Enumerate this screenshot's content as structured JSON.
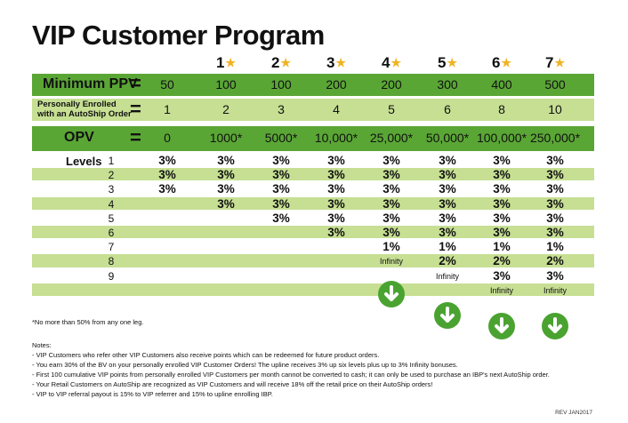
{
  "title": "VIP Customer Program",
  "columns": [
    "1",
    "2",
    "3",
    "4",
    "5",
    "6",
    "7"
  ],
  "min_ppv": {
    "label": "Minimum PPV",
    "eq": "=",
    "values": [
      "50",
      "100",
      "100",
      "200",
      "200",
      "300",
      "400",
      "500"
    ]
  },
  "enrolled": {
    "label_line1": "Personally Enrolled",
    "label_line2": "with an AutoShip Order",
    "eq": "=",
    "values": [
      "1",
      "2",
      "3",
      "4",
      "5",
      "6",
      "8",
      "10"
    ]
  },
  "opv": {
    "label": "OPV",
    "eq": "=",
    "values": [
      "0",
      "1000*",
      "5000*",
      "10,000*",
      "25,000*",
      "50,000*",
      "100,000*",
      "250,000*"
    ]
  },
  "levels_label": "Levels",
  "levels": [
    {
      "n": "1",
      "values": [
        "3%",
        "3%",
        "3%",
        "3%",
        "3%",
        "3%",
        "3%",
        "3%"
      ]
    },
    {
      "n": "2",
      "values": [
        "3%",
        "3%",
        "3%",
        "3%",
        "3%",
        "3%",
        "3%",
        "3%"
      ]
    },
    {
      "n": "3",
      "values": [
        "3%",
        "3%",
        "3%",
        "3%",
        "3%",
        "3%",
        "3%",
        "3%"
      ]
    },
    {
      "n": "4",
      "values": [
        "",
        "3%",
        "3%",
        "3%",
        "3%",
        "3%",
        "3%",
        "3%"
      ]
    },
    {
      "n": "5",
      "values": [
        "",
        "",
        "3%",
        "3%",
        "3%",
        "3%",
        "3%",
        "3%"
      ]
    },
    {
      "n": "6",
      "values": [
        "",
        "",
        "",
        "3%",
        "3%",
        "3%",
        "3%",
        "3%"
      ]
    },
    {
      "n": "7",
      "values": [
        "",
        "",
        "",
        "",
        "1%",
        "1%",
        "1%",
        "1%"
      ]
    },
    {
      "n": "8",
      "values": [
        "",
        "",
        "",
        "",
        "Infinity",
        "2%",
        "2%",
        "2%"
      ]
    },
    {
      "n": "9",
      "values": [
        "",
        "",
        "",
        "",
        "",
        "Infinity",
        "3%",
        "3%"
      ]
    },
    {
      "n": "",
      "values": [
        "",
        "",
        "",
        "",
        "",
        "",
        "Infinity",
        "Infinity"
      ]
    }
  ],
  "footnote": "*No more than 50% from any one leg.",
  "notes_title": "Notes:",
  "notes": [
    "- VIP Customers who refer other VIP Customers also receive points which can be redeemed for future product orders.",
    "- You earn 30% of the BV on your personally enrolled VIP Customer Orders! The upline receives 3% up six levels plus up to 3% Infinity bonuses.",
    "- First 100 cumulative VIP points from personally enrolled VIP Customers per month cannot be converted to cash; it can only be used to purchase an IBP's next AutoShip order.",
    "- Your Retail Customers on AutoShip are recognized as VIP Customers and will receive 18% off the retail price on their AutoShip orders!",
    "- VIP to VIP referral payout is 15% to VIP referrer and 15% to upline enrolling IBP."
  ],
  "rev": "REV JAN2017",
  "colors": {
    "dark_green": "#5aa635",
    "light_green": "#c6df93",
    "star": "#f0b323",
    "arrow": "#4aa331"
  }
}
